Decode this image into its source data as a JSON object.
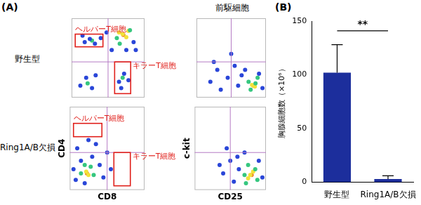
{
  "figure": {
    "panel_labels": [
      "(A)",
      "(B)"
    ],
    "column_title": "前駆細胞",
    "row_labels": [
      "野生型",
      "Ring1A/B欠損"
    ]
  },
  "chart_data": [
    {
      "type": "scatter",
      "xlim": [
        0,
        100
      ],
      "ylim": [
        0,
        100
      ],
      "tick_labels": false,
      "grid": false,
      "quadrant": {
        "x": 50,
        "y": 45
      },
      "gates": [
        {
          "label": "ヘルパーT細胞",
          "x": [
            5,
            43
          ],
          "y": [
            64,
            80
          ]
        },
        {
          "label": "キラーT細胞",
          "x": [
            59,
            81
          ],
          "y": [
            5,
            45
          ]
        }
      ],
      "series": [
        {
          "color": "#2a46d8",
          "x": [
            12,
            20,
            28,
            33,
            18,
            25,
            32,
            40,
            15,
            65,
            72,
            68,
            78,
            55,
            88,
            85,
            48,
            75
          ],
          "values": [
            15,
            25,
            12,
            28,
            70,
            74,
            68,
            75,
            78,
            20,
            30,
            12,
            22,
            60,
            60,
            70,
            82,
            60
          ]
        },
        {
          "color": "#36c77f",
          "x": [
            22,
            28,
            70,
            62,
            80,
            66
          ],
          "values": [
            18,
            72,
            25,
            75,
            85,
            68
          ]
        },
        {
          "color": "#f2e23a",
          "x": [
            70,
            75,
            65,
            78
          ],
          "values": [
            80,
            76,
            82,
            84
          ]
        },
        {
          "color": "#f0862a",
          "x": [
            71
          ],
          "values": [
            79
          ]
        }
      ]
    },
    {
      "type": "scatter",
      "xlim": [
        0,
        100
      ],
      "ylim": [
        0,
        100
      ],
      "tick_labels": false,
      "grid": false,
      "quadrant": {
        "x": 50,
        "y": 45
      },
      "gates": [],
      "series": [
        {
          "color": "#2a46d8",
          "x": [
            20,
            30,
            45,
            55,
            60,
            35,
            70,
            90,
            50,
            65,
            95,
            25
          ],
          "values": [
            20,
            35,
            25,
            40,
            15,
            10,
            35,
            30,
            55,
            28,
            12,
            45
          ]
        },
        {
          "color": "#36c77f",
          "x": [
            75,
            85,
            78,
            88
          ],
          "values": [
            20,
            18,
            10,
            25
          ]
        },
        {
          "color": "#f2e23a",
          "x": [
            80,
            84
          ],
          "values": [
            16,
            14
          ]
        },
        {
          "color": "#f0862a",
          "x": [
            82
          ],
          "values": [
            15
          ]
        }
      ]
    },
    {
      "type": "scatter",
      "xlim": [
        0,
        100
      ],
      "ylim": [
        0,
        100
      ],
      "tick_labels": false,
      "grid": false,
      "x_label": "CD8",
      "y_label": "CD4",
      "quadrant": {
        "x": 50,
        "y": 45
      },
      "gates": [
        {
          "label": "ヘルパーT細胞",
          "x": [
            5,
            43
          ],
          "y": [
            64,
            80
          ]
        },
        {
          "label": "キラーT細胞",
          "x": [
            59,
            81
          ],
          "y": [
            5,
            45
          ]
        }
      ],
      "series": [
        {
          "color": "#2a46d8",
          "x": [
            8,
            15,
            30,
            40,
            45,
            10,
            35,
            50,
            25,
            5,
            55,
            20
          ],
          "values": [
            12,
            35,
            40,
            30,
            15,
            50,
            55,
            45,
            60,
            25,
            25,
            8
          ]
        },
        {
          "color": "#36c77f",
          "x": [
            15,
            28,
            20,
            32
          ],
          "values": [
            20,
            28,
            30,
            18
          ]
        },
        {
          "color": "#f2e23a",
          "x": [
            22,
            25
          ],
          "values": [
            22,
            18
          ]
        },
        {
          "color": "#f0862a",
          "x": [
            23
          ],
          "values": [
            20
          ]
        }
      ]
    },
    {
      "type": "scatter",
      "xlim": [
        0,
        100
      ],
      "ylim": [
        0,
        100
      ],
      "tick_labels": false,
      "grid": false,
      "x_label": "CD25",
      "y_label": "c-kit",
      "quadrant": {
        "x": 50,
        "y": 45
      },
      "gates": [],
      "series": [
        {
          "color": "#2a46d8",
          "x": [
            40,
            50,
            55,
            60,
            90,
            35,
            70,
            95,
            45,
            62
          ],
          "values": [
            20,
            35,
            10,
            40,
            35,
            30,
            45,
            15,
            50,
            25
          ]
        },
        {
          "color": "#36c77f",
          "x": [
            70,
            85,
            75,
            88,
            72
          ],
          "values": [
            18,
            25,
            30,
            12,
            8
          ]
        },
        {
          "color": "#f2e23a",
          "x": [
            78,
            82,
            75
          ],
          "values": [
            18,
            22,
            14
          ]
        },
        {
          "color": "#f0862a",
          "x": [
            80
          ],
          "values": [
            18
          ]
        }
      ]
    },
    {
      "type": "bar",
      "y_label": "胸腺細胞数（×10⁶）",
      "categories": [
        "野生型",
        "Ring1A/B欠損"
      ],
      "values": [
        102,
        3
      ],
      "errors": [
        26,
        3
      ],
      "color": "#1c2e9c",
      "ylim": [
        0,
        150
      ],
      "yticks": [
        0,
        50,
        100,
        150
      ],
      "grid": false,
      "significance": {
        "text": "**",
        "between": [
          0,
          1
        ],
        "y": 141
      }
    }
  ]
}
